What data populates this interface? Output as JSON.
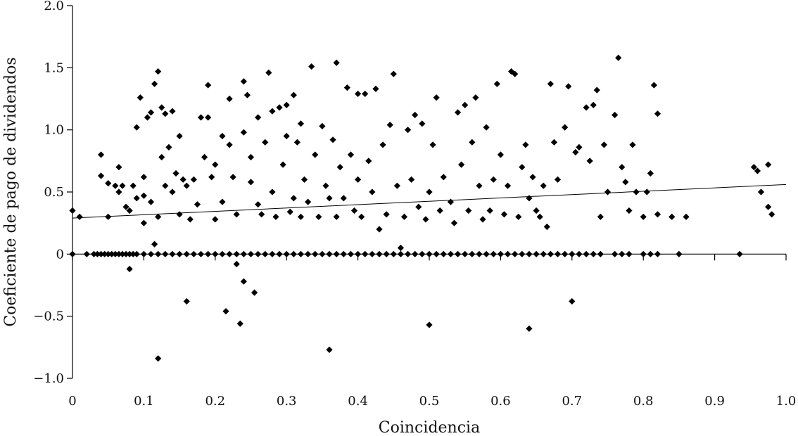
{
  "chart_data": {
    "type": "scatter",
    "title": "",
    "xlabel": "Coincidencia",
    "ylabel": "Coeficiente de pago de dividendos",
    "xlim": [
      0,
      1.0
    ],
    "ylim": [
      -1.0,
      2.0
    ],
    "x_ticks": [
      0,
      0.1,
      0.2,
      0.3,
      0.4,
      0.5,
      0.6,
      0.7,
      0.8,
      0.9,
      1.0
    ],
    "x_tick_labels": [
      "0",
      "0.1",
      "0.2",
      "0.3",
      "0.4",
      "0.5",
      "0.6",
      "0.7",
      "0.8",
      "0.9",
      "1.0"
    ],
    "y_ticks": [
      -1.0,
      -0.5,
      0,
      0.5,
      1.0,
      1.5,
      2.0
    ],
    "y_tick_labels": [
      "−1.0",
      "−0.5",
      "0",
      "0.5",
      "1.0",
      "1.5",
      "2.0"
    ],
    "grid": false,
    "marker": "diamond",
    "trendline": {
      "x": [
        0,
        1.0
      ],
      "y": [
        0.29,
        0.56
      ]
    },
    "series": [
      {
        "points": [
          [
            0.0,
            0.35
          ],
          [
            0.01,
            0.3
          ],
          [
            0.04,
            0.8
          ],
          [
            0.04,
            0.63
          ],
          [
            0.05,
            0.57
          ],
          [
            0.05,
            0.3
          ],
          [
            0.06,
            0.55
          ],
          [
            0.065,
            0.7
          ],
          [
            0.065,
            0.5
          ],
          [
            0.07,
            0.55
          ],
          [
            0.075,
            0.38
          ],
          [
            0.08,
            0.35
          ],
          [
            0.08,
            -0.12
          ],
          [
            0.085,
            0.55
          ],
          [
            0.09,
            1.02
          ],
          [
            0.09,
            0.45
          ],
          [
            0.095,
            1.26
          ],
          [
            0.1,
            0.25
          ],
          [
            0.1,
            0.47
          ],
          [
            0.1,
            0.62
          ],
          [
            0.105,
            1.1
          ],
          [
            0.11,
            1.14
          ],
          [
            0.11,
            0.42
          ],
          [
            0.115,
            1.37
          ],
          [
            0.115,
            0.08
          ],
          [
            0.12,
            1.47
          ],
          [
            0.12,
            0.3
          ],
          [
            0.12,
            -0.84
          ],
          [
            0.125,
            1.18
          ],
          [
            0.125,
            0.78
          ],
          [
            0.13,
            1.13
          ],
          [
            0.13,
            0.55
          ],
          [
            0.135,
            0.86
          ],
          [
            0.14,
            1.15
          ],
          [
            0.14,
            0.5
          ],
          [
            0.145,
            0.65
          ],
          [
            0.15,
            0.32
          ],
          [
            0.15,
            0.95
          ],
          [
            0.155,
            0.6
          ],
          [
            0.16,
            0.55
          ],
          [
            0.16,
            -0.38
          ],
          [
            0.165,
            0.28
          ],
          [
            0.17,
            0.6
          ],
          [
            0.175,
            0.4
          ],
          [
            0.18,
            1.1
          ],
          [
            0.185,
            0.78
          ],
          [
            0.19,
            1.36
          ],
          [
            0.19,
            1.1
          ],
          [
            0.195,
            0.62
          ],
          [
            0.2,
            0.28
          ],
          [
            0.2,
            0.72
          ],
          [
            0.21,
            0.95
          ],
          [
            0.21,
            0.42
          ],
          [
            0.215,
            -0.46
          ],
          [
            0.22,
            1.25
          ],
          [
            0.22,
            0.88
          ],
          [
            0.225,
            0.62
          ],
          [
            0.23,
            0.32
          ],
          [
            0.23,
            -0.08
          ],
          [
            0.235,
            -0.56
          ],
          [
            0.24,
            1.39
          ],
          [
            0.24,
            0.98
          ],
          [
            0.24,
            -0.22
          ],
          [
            0.245,
            1.28
          ],
          [
            0.25,
            0.58
          ],
          [
            0.25,
            0.78
          ],
          [
            0.255,
            -0.31
          ],
          [
            0.26,
            0.4
          ],
          [
            0.26,
            1.1
          ],
          [
            0.265,
            0.32
          ],
          [
            0.27,
            0.9
          ],
          [
            0.275,
            1.46
          ],
          [
            0.28,
            1.15
          ],
          [
            0.28,
            0.5
          ],
          [
            0.285,
            0.3
          ],
          [
            0.29,
            1.18
          ],
          [
            0.295,
            0.72
          ],
          [
            0.3,
            0.95
          ],
          [
            0.3,
            1.2
          ],
          [
            0.305,
            0.34
          ],
          [
            0.31,
            1.28
          ],
          [
            0.31,
            0.45
          ],
          [
            0.315,
            0.9
          ],
          [
            0.32,
            1.05
          ],
          [
            0.32,
            0.3
          ],
          [
            0.325,
            0.6
          ],
          [
            0.33,
            0.42
          ],
          [
            0.335,
            1.51
          ],
          [
            0.34,
            0.8
          ],
          [
            0.345,
            0.3
          ],
          [
            0.35,
            1.03
          ],
          [
            0.355,
            0.55
          ],
          [
            0.36,
            0.45
          ],
          [
            0.36,
            -0.77
          ],
          [
            0.365,
            0.92
          ],
          [
            0.37,
            1.54
          ],
          [
            0.37,
            0.3
          ],
          [
            0.375,
            0.7
          ],
          [
            0.38,
            0.45
          ],
          [
            0.385,
            1.34
          ],
          [
            0.39,
            0.8
          ],
          [
            0.395,
            0.35
          ],
          [
            0.4,
            1.29
          ],
          [
            0.4,
            0.6
          ],
          [
            0.405,
            0.3
          ],
          [
            0.41,
            1.29
          ],
          [
            0.415,
            0.75
          ],
          [
            0.42,
            0.5
          ],
          [
            0.425,
            1.33
          ],
          [
            0.43,
            0.2
          ],
          [
            0.435,
            0.88
          ],
          [
            0.44,
            0.32
          ],
          [
            0.445,
            1.04
          ],
          [
            0.45,
            1.45
          ],
          [
            0.455,
            0.55
          ],
          [
            0.46,
            0.05
          ],
          [
            0.465,
            0.3
          ],
          [
            0.47,
            1.0
          ],
          [
            0.475,
            0.6
          ],
          [
            0.48,
            1.12
          ],
          [
            0.485,
            0.38
          ],
          [
            0.49,
            1.05
          ],
          [
            0.495,
            0.28
          ],
          [
            0.5,
            0.5
          ],
          [
            0.5,
            -0.57
          ],
          [
            0.505,
            0.88
          ],
          [
            0.51,
            1.26
          ],
          [
            0.515,
            0.35
          ],
          [
            0.52,
            0.62
          ],
          [
            0.53,
            0.42
          ],
          [
            0.535,
            0.25
          ],
          [
            0.54,
            1.14
          ],
          [
            0.545,
            0.72
          ],
          [
            0.55,
            1.2
          ],
          [
            0.555,
            0.35
          ],
          [
            0.56,
            0.9
          ],
          [
            0.565,
            1.26
          ],
          [
            0.57,
            0.55
          ],
          [
            0.575,
            0.28
          ],
          [
            0.58,
            1.02
          ],
          [
            0.585,
            0.35
          ],
          [
            0.59,
            0.6
          ],
          [
            0.595,
            1.37
          ],
          [
            0.6,
            0.8
          ],
          [
            0.605,
            0.32
          ],
          [
            0.61,
            0.55
          ],
          [
            0.615,
            1.47
          ],
          [
            0.62,
            1.45
          ],
          [
            0.625,
            0.3
          ],
          [
            0.63,
            0.7
          ],
          [
            0.635,
            0.88
          ],
          [
            0.64,
            0.45
          ],
          [
            0.64,
            -0.6
          ],
          [
            0.645,
            0.62
          ],
          [
            0.65,
            0.35
          ],
          [
            0.655,
            0.3
          ],
          [
            0.66,
            0.55
          ],
          [
            0.665,
            0.22
          ],
          [
            0.67,
            1.37
          ],
          [
            0.675,
            0.9
          ],
          [
            0.68,
            0.6
          ],
          [
            0.69,
            1.02
          ],
          [
            0.695,
            1.35
          ],
          [
            0.7,
            -0.38
          ],
          [
            0.705,
            0.82
          ],
          [
            0.71,
            0.86
          ],
          [
            0.72,
            1.18
          ],
          [
            0.725,
            0.75
          ],
          [
            0.73,
            1.2
          ],
          [
            0.735,
            1.32
          ],
          [
            0.74,
            0.3
          ],
          [
            0.745,
            0.88
          ],
          [
            0.75,
            0.5
          ],
          [
            0.76,
            1.12
          ],
          [
            0.765,
            1.58
          ],
          [
            0.77,
            0.7
          ],
          [
            0.775,
            0.58
          ],
          [
            0.78,
            0.35
          ],
          [
            0.785,
            0.88
          ],
          [
            0.79,
            0.5
          ],
          [
            0.8,
            0.3
          ],
          [
            0.805,
            0.5
          ],
          [
            0.81,
            0.65
          ],
          [
            0.815,
            1.36
          ],
          [
            0.82,
            1.13
          ],
          [
            0.82,
            0.32
          ],
          [
            0.84,
            0.3
          ],
          [
            0.86,
            0.3
          ],
          [
            0.955,
            0.7
          ],
          [
            0.96,
            0.67
          ],
          [
            0.965,
            0.5
          ],
          [
            0.975,
            0.72
          ],
          [
            0.975,
            0.38
          ],
          [
            0.98,
            0.32
          ]
        ],
        "zero_x": [
          0.0,
          0.02,
          0.03,
          0.035,
          0.04,
          0.045,
          0.05,
          0.055,
          0.06,
          0.065,
          0.07,
          0.075,
          0.08,
          0.085,
          0.09,
          0.1,
          0.11,
          0.12,
          0.13,
          0.14,
          0.15,
          0.16,
          0.17,
          0.18,
          0.19,
          0.2,
          0.21,
          0.22,
          0.23,
          0.24,
          0.25,
          0.26,
          0.27,
          0.28,
          0.29,
          0.3,
          0.31,
          0.32,
          0.33,
          0.34,
          0.35,
          0.36,
          0.37,
          0.38,
          0.39,
          0.4,
          0.41,
          0.42,
          0.43,
          0.44,
          0.45,
          0.46,
          0.47,
          0.48,
          0.49,
          0.5,
          0.51,
          0.52,
          0.53,
          0.54,
          0.55,
          0.56,
          0.57,
          0.58,
          0.59,
          0.6,
          0.61,
          0.62,
          0.63,
          0.64,
          0.65,
          0.66,
          0.67,
          0.68,
          0.69,
          0.7,
          0.71,
          0.72,
          0.73,
          0.74,
          0.76,
          0.77,
          0.78,
          0.8,
          0.81,
          0.82,
          0.85,
          0.935
        ]
      }
    ]
  }
}
